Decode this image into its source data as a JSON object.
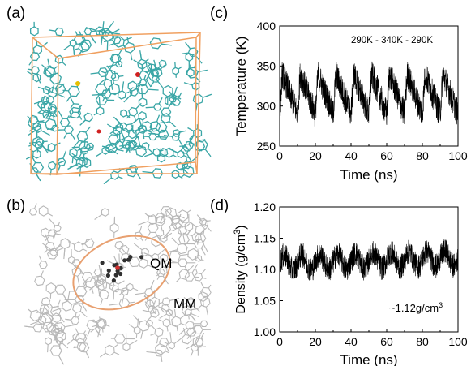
{
  "panels": {
    "a": "(a)",
    "b": "(b)",
    "c": "(c)",
    "d": "(d)"
  },
  "molecular_views": {
    "panel_a": {
      "box_color": "#f0a060",
      "molecule_color": "#3aa6a6",
      "highlight_colors": [
        "#e8c000",
        "#d02020"
      ]
    },
    "panel_b": {
      "molecule_color": "#b8b8b8",
      "qm_region_color": "#e8a070",
      "qm_atom_color": "#303030",
      "labels": {
        "qm": "QM",
        "mm": "MM"
      }
    }
  },
  "chart_data": [
    {
      "id": "c",
      "type": "line",
      "xlabel": "Time (ns)",
      "ylabel": "Temperature (K)",
      "xlim": [
        0,
        100
      ],
      "ylim": [
        250,
        400
      ],
      "xticks": [
        0,
        20,
        40,
        60,
        80,
        100
      ],
      "yticks": [
        250,
        300,
        350,
        400
      ],
      "annotation": "290K - 340K - 290K",
      "series_color": "#000000",
      "cycle_period_ns": 10,
      "cycle_low_K": 290,
      "cycle_high_K": 340,
      "noise_amplitude_K": 18
    },
    {
      "id": "d",
      "type": "line",
      "xlabel": "Time (ns)",
      "ylabel": "Density (g/cm³)",
      "ylabel_main": "Density (g/cm",
      "ylabel_sup": "3",
      "ylabel_tail": ")",
      "xlim": [
        0,
        100
      ],
      "ylim": [
        1.0,
        1.2
      ],
      "xticks": [
        0,
        20,
        40,
        60,
        80,
        100
      ],
      "yticks": [
        1.0,
        1.05,
        1.1,
        1.15,
        1.2
      ],
      "annotation_main": "~1.12g/cm",
      "annotation_sup": "3",
      "series_color": "#000000",
      "mean_density": 1.12,
      "noise_amplitude": 0.02
    }
  ]
}
